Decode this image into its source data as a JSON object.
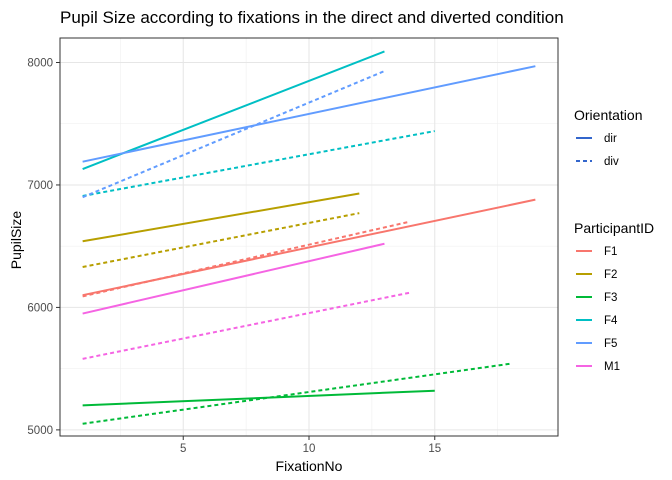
{
  "chart_data": {
    "type": "line",
    "title": "Pupil Size according to fixations in the direct and diverted condition",
    "xlabel": "FixationNo",
    "ylabel": "PupilSize",
    "xlim": [
      0.1,
      19.9
    ],
    "ylim": [
      4950,
      8200
    ],
    "xticks": [
      5,
      10,
      15
    ],
    "yticks": [
      5000,
      6000,
      7000,
      8000
    ],
    "grid": true,
    "legend_position": "right",
    "legends": [
      {
        "title": "Orientation",
        "entries": [
          {
            "label": "dir",
            "dash": "solid",
            "color": "#3366cc"
          },
          {
            "label": "div",
            "dash": "dashed",
            "color": "#3366cc"
          }
        ]
      },
      {
        "title": "ParticipantID",
        "entries": [
          {
            "label": "F1",
            "color": "#F8766D"
          },
          {
            "label": "F2",
            "color": "#B79F00"
          },
          {
            "label": "F3",
            "color": "#00BA38"
          },
          {
            "label": "F4",
            "color": "#00BFC4"
          },
          {
            "label": "F5",
            "color": "#619CFF"
          },
          {
            "label": "M1",
            "color": "#F564E3"
          }
        ]
      }
    ],
    "series": [
      {
        "participant": "F1",
        "orientation": "dir",
        "color": "#F8766D",
        "x": [
          1,
          19
        ],
        "y": [
          6100,
          6880
        ]
      },
      {
        "participant": "F1",
        "orientation": "div",
        "color": "#F8766D",
        "x": [
          1,
          14
        ],
        "y": [
          6090,
          6700
        ]
      },
      {
        "participant": "F2",
        "orientation": "dir",
        "color": "#B79F00",
        "x": [
          1,
          12
        ],
        "y": [
          6540,
          6930
        ]
      },
      {
        "participant": "F2",
        "orientation": "div",
        "color": "#B79F00",
        "x": [
          1,
          12
        ],
        "y": [
          6330,
          6770
        ]
      },
      {
        "participant": "F3",
        "orientation": "dir",
        "color": "#00BA38",
        "x": [
          1,
          15
        ],
        "y": [
          5200,
          5320
        ]
      },
      {
        "participant": "F3",
        "orientation": "div",
        "color": "#00BA38",
        "x": [
          1,
          18
        ],
        "y": [
          5050,
          5540
        ]
      },
      {
        "participant": "F4",
        "orientation": "dir",
        "color": "#00BFC4",
        "x": [
          1,
          13
        ],
        "y": [
          7130,
          8090
        ]
      },
      {
        "participant": "F4",
        "orientation": "div",
        "color": "#00BFC4",
        "x": [
          1,
          15
        ],
        "y": [
          6910,
          7440
        ]
      },
      {
        "participant": "F5",
        "orientation": "dir",
        "color": "#619CFF",
        "x": [
          1,
          19
        ],
        "y": [
          7190,
          7970
        ]
      },
      {
        "participant": "F5",
        "orientation": "div",
        "color": "#619CFF",
        "x": [
          1,
          13
        ],
        "y": [
          6900,
          7930
        ]
      },
      {
        "participant": "M1",
        "orientation": "dir",
        "color": "#F564E3",
        "x": [
          1,
          13
        ],
        "y": [
          5950,
          6520
        ]
      },
      {
        "participant": "M1",
        "orientation": "div",
        "color": "#F564E3",
        "x": [
          1,
          14
        ],
        "y": [
          5580,
          6120
        ]
      }
    ]
  }
}
